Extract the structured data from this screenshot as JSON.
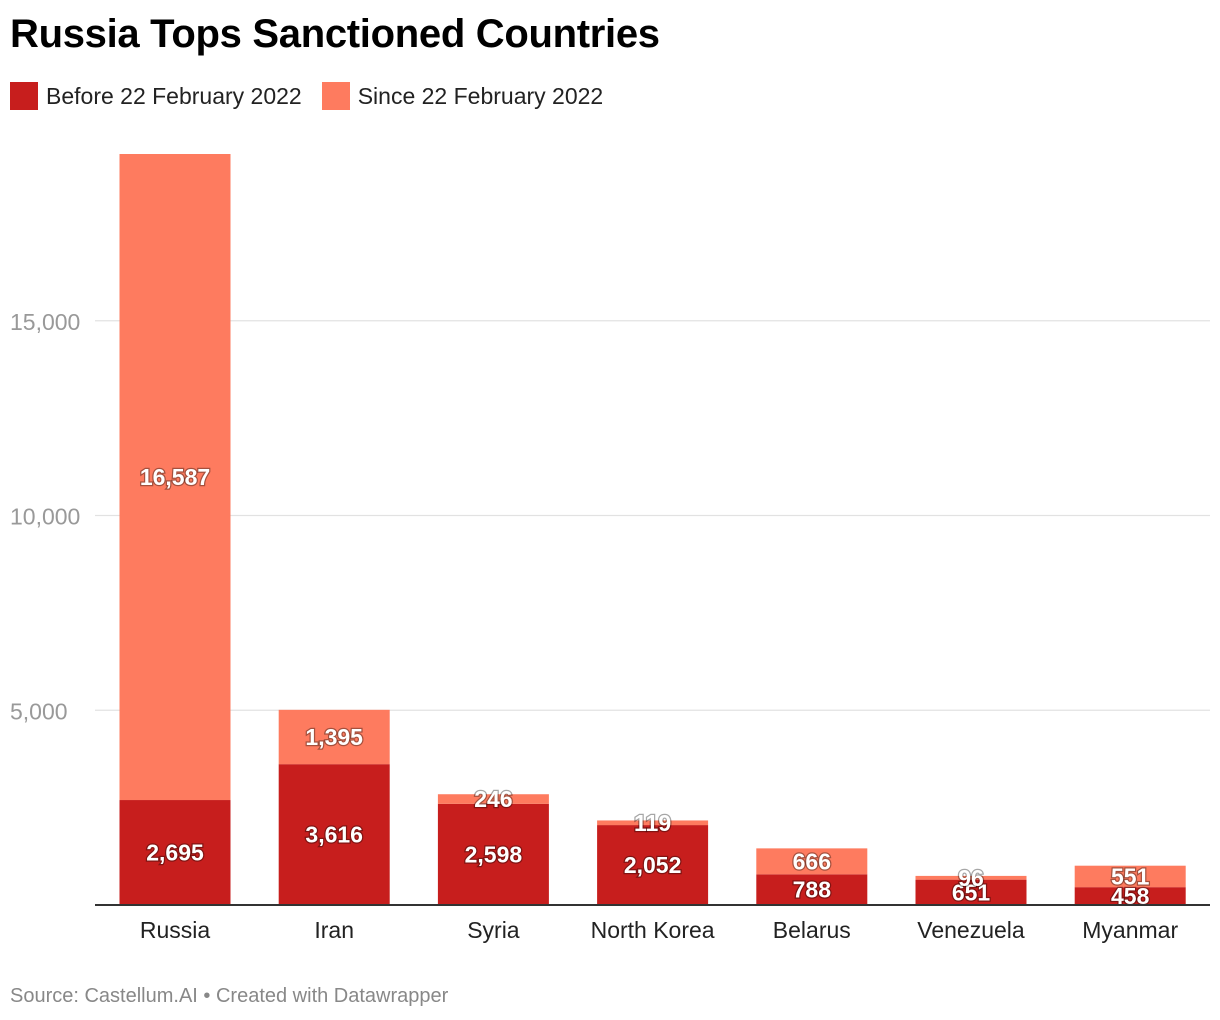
{
  "header": {
    "title": "Russia Tops Sanctioned Countries"
  },
  "legend": {
    "items": [
      {
        "label": "Before 22 February 2022",
        "color": "#c71e1d"
      },
      {
        "label": "Since 22 February 2022",
        "color": "#fe7b5f"
      }
    ]
  },
  "footer": {
    "source": "Source: Castellum.AI • Created with Datawrapper"
  },
  "chart_data": {
    "type": "bar",
    "stacked": true,
    "title": "Russia Tops Sanctioned Countries",
    "xlabel": "",
    "ylabel": "",
    "ylim": [
      0,
      19282
    ],
    "yticks": [
      {
        "value": 5000,
        "label": "5,000"
      },
      {
        "value": 10000,
        "label": "10,000"
      },
      {
        "value": 15000,
        "label": "15,000"
      }
    ],
    "grid": true,
    "legend_position": "top-left",
    "categories": [
      "Russia",
      "Iran",
      "Syria",
      "North Korea",
      "Belarus",
      "Venezuela",
      "Myanmar"
    ],
    "series": [
      {
        "name": "Before 22 February 2022",
        "color": "#c71e1d",
        "values": [
          2695,
          3616,
          2598,
          2052,
          788,
          651,
          458
        ],
        "labels": [
          "2,695",
          "3,616",
          "2,598",
          "2,052",
          "788",
          "651",
          "458"
        ]
      },
      {
        "name": "Since 22 February 2022",
        "color": "#fe7b5f",
        "values": [
          16587,
          1395,
          246,
          119,
          666,
          96,
          551
        ],
        "labels": [
          "16,587",
          "1,395",
          "246",
          "119",
          "666",
          "96",
          "551"
        ]
      }
    ]
  }
}
